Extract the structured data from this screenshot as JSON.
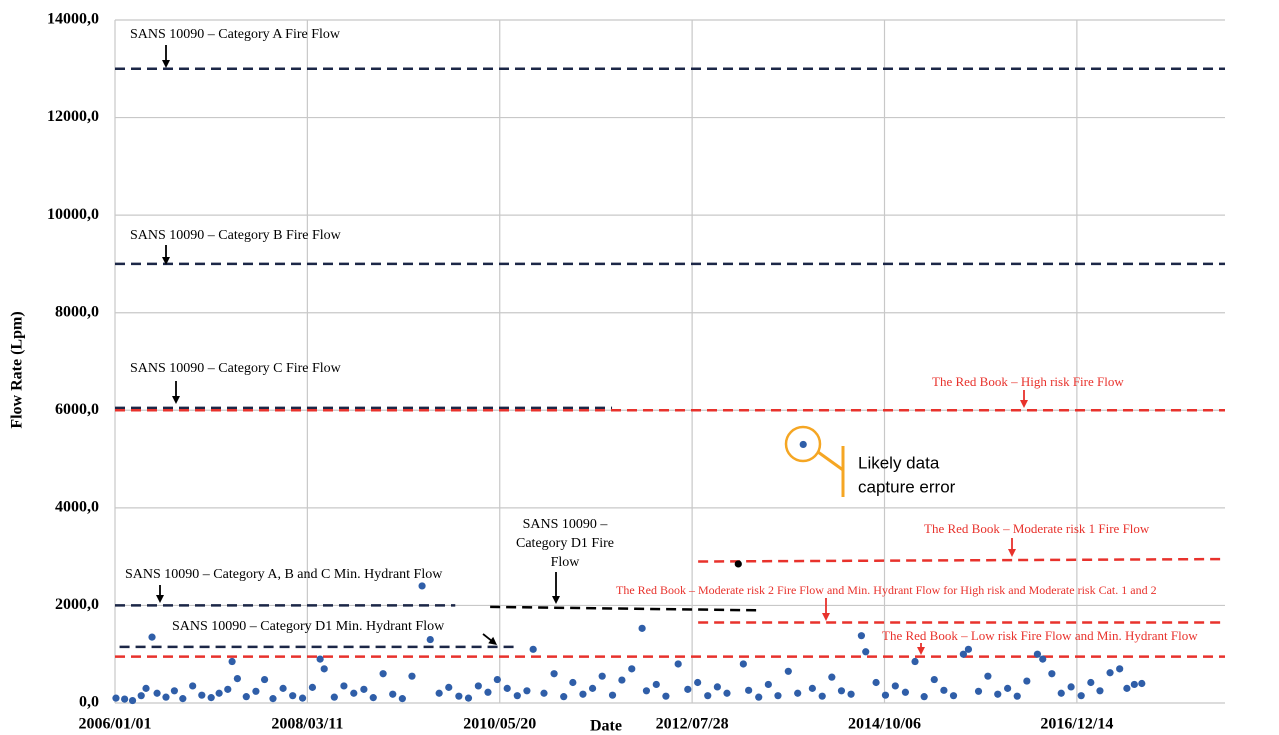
{
  "chart_data": {
    "type": "scatter",
    "ylabel": "Flow Rate (Lpm)",
    "xlabel": "Date",
    "xlim": [
      "2006/01/01",
      "2018/08/22"
    ],
    "xticks": [
      "2006/01/01",
      "2008/03/11",
      "2010/05/20",
      "2012/07/28",
      "2014/10/06",
      "2016/12/14"
    ],
    "ylim": [
      0,
      14000
    ],
    "yticks": [
      {
        "value": 0,
        "label": "0,0"
      },
      {
        "value": 2000,
        "label": "2000,0"
      },
      {
        "value": 4000,
        "label": "4000,0"
      },
      {
        "value": 6000,
        "label": "6000,0"
      },
      {
        "value": 8000,
        "label": "8000,0"
      },
      {
        "value": 10000,
        "label": "10000,0"
      },
      {
        "value": 12000,
        "label": "12000,0"
      },
      {
        "value": 14000,
        "label": "14000,0"
      }
    ],
    "grid": true,
    "series": [
      {
        "color": "#2f5ea8",
        "x": [
          "2006/01/05",
          "2006/02/10",
          "2006/03/15",
          "2006/04/20",
          "2006/05/10",
          "2006/06/04",
          "2006/06/25",
          "2006/08/01",
          "2006/09/05",
          "2006/10/10",
          "2006/11/20",
          "2006/12/28",
          "2007/02/05",
          "2007/03/10",
          "2007/04/15",
          "2007/05/03",
          "2007/05/25",
          "2007/07/01",
          "2007/08/10",
          "2007/09/15",
          "2007/10/20",
          "2007/12/01",
          "2008/01/10",
          "2008/02/20",
          "2008/04/01",
          "2008/05/03",
          "2008/05/20",
          "2008/07/01",
          "2008/08/10",
          "2008/09/20",
          "2008/11/01",
          "2008/12/10",
          "2009/01/20",
          "2009/03/01",
          "2009/04/10",
          "2009/05/20",
          "2009/07/01",
          "2009/08/04",
          "2009/09/10",
          "2009/10/20",
          "2009/12/01",
          "2010/01/10",
          "2010/02/20",
          "2010/04/01",
          "2010/05/10",
          "2010/06/20",
          "2010/08/01",
          "2010/09/10",
          "2010/10/06",
          "2010/11/20",
          "2011/01/01",
          "2011/02/10",
          "2011/03/20",
          "2011/05/01",
          "2011/06/10",
          "2011/07/20",
          "2011/09/01",
          "2011/10/10",
          "2011/11/20",
          "2012/01/02",
          "2012/01/20",
          "2012/03/01",
          "2012/04/10",
          "2012/05/31",
          "2012/07/10",
          "2012/08/20",
          "2012/10/01",
          "2012/11/10",
          "2012/12/20",
          "2013/02/26",
          "2013/03/20",
          "2013/05/01",
          "2013/06/10",
          "2013/07/20",
          "2013/09/01",
          "2013/10/10",
          "2013/11/02",
          "2013/12/10",
          "2014/01/20",
          "2014/03/01",
          "2014/04/10",
          "2014/05/20",
          "2014/07/02",
          "2014/07/20",
          "2014/09/01",
          "2014/10/10",
          "2014/11/20",
          "2015/01/01",
          "2015/02/10",
          "2015/03/20",
          "2015/05/01",
          "2015/06/10",
          "2015/07/20",
          "2015/08/30",
          "2015/09/20",
          "2015/11/01",
          "2015/12/10",
          "2016/01/20",
          "2016/03/01",
          "2016/04/10",
          "2016/05/20",
          "2016/07/03",
          "2016/07/25",
          "2016/09/01",
          "2016/10/10",
          "2016/11/20",
          "2017/01/01",
          "2017/02/10",
          "2017/03/20",
          "2017/05/01",
          "2017/06/10",
          "2017/07/10",
          "2017/08/10",
          "2017/09/10"
        ],
        "values": [
          100,
          80,
          50,
          150,
          300,
          1350,
          200,
          120,
          250,
          90,
          350,
          160,
          110,
          200,
          280,
          850,
          500,
          130,
          240,
          480,
          90,
          300,
          150,
          100,
          320,
          900,
          700,
          120,
          350,
          200,
          280,
          110,
          600,
          180,
          90,
          550,
          2400,
          1300,
          200,
          320,
          140,
          100,
          350,
          220,
          480,
          300,
          150,
          250,
          1100,
          200,
          600,
          130,
          420,
          180,
          300,
          550,
          160,
          470,
          700,
          1530,
          250,
          380,
          140,
          800,
          280,
          420,
          150,
          330,
          200,
          800,
          260,
          120,
          380,
          150,
          650,
          200,
          5300,
          300,
          140,
          530,
          250,
          180,
          1380,
          1050,
          420,
          160,
          350,
          220,
          850,
          130,
          480,
          260,
          150,
          1000,
          1100,
          240,
          550,
          180,
          300,
          140,
          450,
          1000,
          900,
          600,
          200,
          330,
          150,
          420,
          250,
          620,
          700,
          300,
          380,
          400
        ]
      },
      {
        "color": "#000000",
        "x": [
          "2013/02/05"
        ],
        "values": [
          2850
        ]
      }
    ],
    "reference_lines": [
      {
        "x": [
          "2006/01/01",
          "2018/08/22"
        ],
        "y": [
          13000,
          13000
        ],
        "color": "#1c2747"
      },
      {
        "x": [
          "2006/01/01",
          "2018/08/22"
        ],
        "y": [
          9000,
          9000
        ],
        "color": "#1c2747"
      },
      {
        "x": [
          "2006/01/01",
          "2011/08/30"
        ],
        "y": [
          6050,
          6050
        ],
        "color": "#1c2747"
      },
      {
        "x": [
          "2006/01/01",
          "2018/08/22"
        ],
        "y": [
          6000,
          6000
        ],
        "color": "#e8322c"
      },
      {
        "x": [
          "2006/01/01",
          "2009/11/16"
        ],
        "y": [
          2000,
          2000
        ],
        "color": "#1c2747"
      },
      {
        "x": [
          "2006/01/20",
          "2010/07/23"
        ],
        "y": [
          1150,
          1150
        ],
        "color": "#1c2747"
      },
      {
        "x": [
          "2010/04/10",
          "2013/04/24"
        ],
        "y": [
          1970,
          1900
        ],
        "color": "#000000"
      },
      {
        "x": [
          "2012/08/22",
          "2018/08/22"
        ],
        "y": [
          2900,
          2950
        ],
        "color": "#e8322c"
      },
      {
        "x": [
          "2012/08/22",
          "2018/08/22"
        ],
        "y": [
          1650,
          1650
        ],
        "color": "#e8322c"
      },
      {
        "x": [
          "2006/01/01",
          "2018/08/22"
        ],
        "y": [
          950,
          950
        ],
        "color": "#e8322c"
      }
    ],
    "annotations": [
      {
        "text": "SANS 10090 – Category A Fire Flow",
        "color": "#000000"
      },
      {
        "text": "SANS 10090 – Category B Fire Flow",
        "color": "#000000"
      },
      {
        "text": "SANS 10090 – Category C Fire Flow",
        "color": "#000000"
      },
      {
        "text": "SANS 10090 – Category A, B and C Min. Hydrant Flow",
        "color": "#000000"
      },
      {
        "text": "SANS 10090 – Category D1 Min. Hydrant Flow",
        "color": "#000000"
      },
      {
        "lines": [
          "SANS 10090 –",
          "Category D1 Fire",
          "Flow"
        ],
        "color": "#000000"
      },
      {
        "text": "The Red Book – High risk Fire Flow",
        "color": "#e8322c"
      },
      {
        "text": "The Red Book – Moderate risk 1 Fire Flow",
        "color": "#e8322c"
      },
      {
        "text": "The Red Book – Moderate risk 2 Fire Flow and Min. Hydrant Flow for High risk and Moderate risk Cat. 1 and 2",
        "color": "#e8322c"
      },
      {
        "text": "The Red Book – Low risk Fire Flow and Min. Hydrant Flow",
        "color": "#e8322c"
      },
      {
        "lines": [
          "Likely data",
          "capture error"
        ],
        "color": "#000000"
      }
    ]
  }
}
